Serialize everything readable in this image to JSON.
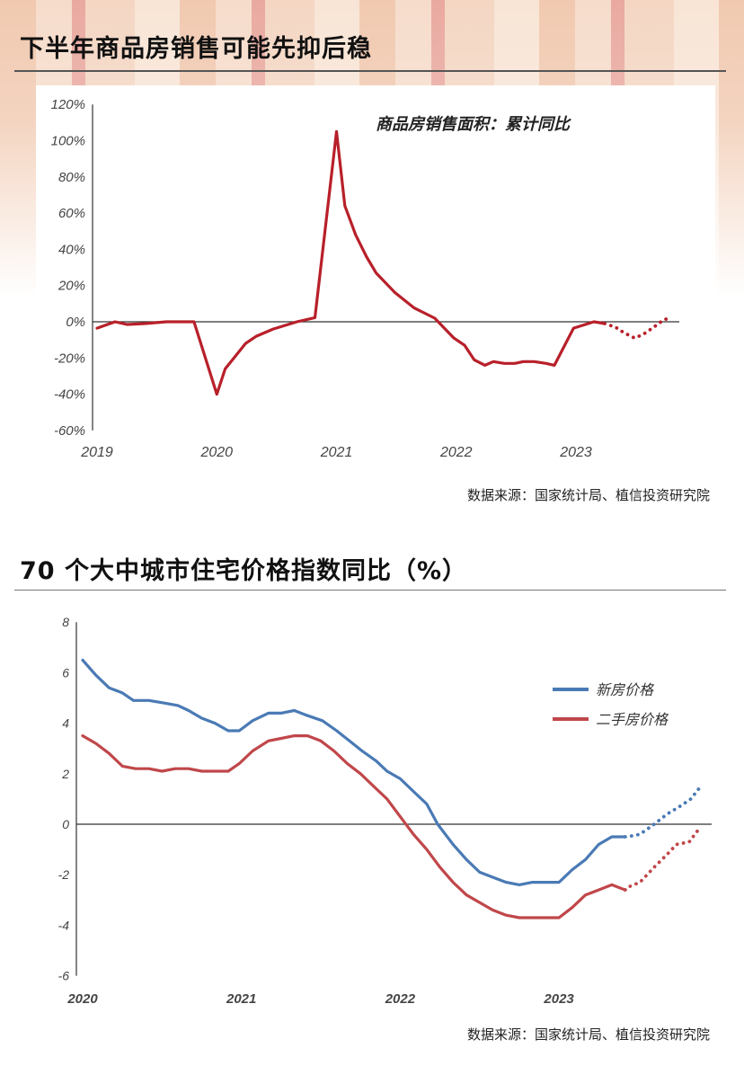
{
  "section1": {
    "title": "下半年商品房销售可能先抑后稳",
    "source": "数据来源：国家统计局、植信投资研究院"
  },
  "section2": {
    "title": "70 个大中城市住宅价格指数同比（%）",
    "source": "数据来源：国家统计局、植信投资研究院"
  },
  "chart_data": [
    {
      "type": "line",
      "title": "商品房销售面积：累计同比",
      "ylim": [
        -60,
        120
      ],
      "yticks": [
        -60,
        -40,
        -20,
        0,
        20,
        40,
        60,
        80,
        100,
        120
      ],
      "ytick_labels": [
        "-60%",
        "-40%",
        "-20%",
        "0%",
        "20%",
        "40%",
        "60%",
        "80%",
        "100%",
        "120%"
      ],
      "xticks": [
        2019,
        2020,
        2021,
        2022,
        2023
      ],
      "xtick_labels": [
        "2019",
        "2020",
        "2021",
        "2022",
        "2023"
      ],
      "grid": false,
      "series": [
        {
          "color": "#b8202a",
          "style": "solid",
          "x": [
            2019.0,
            2019.15,
            2019.25,
            2019.4,
            2019.58,
            2019.81,
            2020.0,
            2020.07,
            2020.24,
            2020.33,
            2020.47,
            2020.67,
            2020.82,
            2021.0,
            2021.07,
            2021.16,
            2021.25,
            2021.33,
            2021.49,
            2021.65,
            2021.82,
            2021.98,
            2022.07,
            2022.15,
            2022.24,
            2022.31,
            2022.4,
            2022.49,
            2022.56,
            2022.65,
            2022.75,
            2022.82,
            2022.98,
            2023.15,
            2023.24
          ],
          "y": [
            -3.5,
            0,
            -1.5,
            -1,
            0,
            0,
            -40,
            -26,
            -12,
            -8,
            -4,
            0,
            2.3,
            105,
            64,
            48,
            36,
            27,
            16,
            7.6,
            2,
            -9,
            -13,
            -21,
            -24,
            -22,
            -23,
            -23,
            -22,
            -22,
            -23,
            -24,
            -3.5,
            0,
            -1
          ]
        },
        {
          "color": "#b8202a",
          "style": "dotted",
          "x": [
            2023.24,
            2023.33,
            2023.4,
            2023.49,
            2023.56,
            2023.65,
            2023.73,
            2023.8
          ],
          "y": [
            -1,
            -3,
            -6,
            -9,
            -7,
            -3,
            1,
            2.5
          ]
        }
      ]
    },
    {
      "type": "line",
      "ylim": [
        -6,
        8
      ],
      "yticks": [
        -6,
        -4,
        -2,
        0,
        2,
        4,
        6,
        8
      ],
      "ytick_labels": [
        "-6",
        "-4",
        "-2",
        "0",
        "2",
        "4",
        "6",
        "8"
      ],
      "xticks": [
        2020,
        2021,
        2022,
        2023
      ],
      "xtick_labels": [
        "2020",
        "2021",
        "2022",
        "2023"
      ],
      "grid": false,
      "legend_placement": "right",
      "series": [
        {
          "name": "新房价格",
          "color": "#4a7ab5",
          "style": "solid",
          "x": [
            2020.0,
            2020.083,
            2020.167,
            2020.25,
            2020.32,
            2020.417,
            2020.51,
            2020.6,
            2020.667,
            2020.75,
            2020.833,
            2020.917,
            2020.986,
            2021.07,
            2021.17,
            2021.25,
            2021.333,
            2021.417,
            2021.51,
            2021.6,
            2021.68,
            2021.76,
            2021.85,
            2021.917,
            2022.0,
            2022.083,
            2022.167,
            2022.236,
            2022.333,
            2022.417,
            2022.5,
            2022.583,
            2022.667,
            2022.75,
            2022.833,
            2022.917,
            2023.0,
            2023.083,
            2023.167,
            2023.25,
            2023.333,
            2023.417
          ],
          "y": [
            6.5,
            5.9,
            5.4,
            5.2,
            4.9,
            4.9,
            4.8,
            4.7,
            4.5,
            4.2,
            4.0,
            3.7,
            3.7,
            4.1,
            4.4,
            4.4,
            4.5,
            4.3,
            4.1,
            3.7,
            3.3,
            2.9,
            2.5,
            2.1,
            1.8,
            1.3,
            0.8,
            0,
            -0.8,
            -1.4,
            -1.9,
            -2.1,
            -2.3,
            -2.4,
            -2.3,
            -2.3,
            -2.3,
            -1.8,
            -1.4,
            -0.8,
            -0.5,
            -0.5
          ]
        },
        {
          "name": "新房价格",
          "color": "#4a7ab5",
          "style": "dotted",
          "legend": false,
          "x": [
            2023.417,
            2023.43,
            2023.51,
            2023.6,
            2023.68,
            2023.76,
            2023.83,
            2023.88
          ],
          "y": [
            -0.5,
            -0.5,
            -0.4,
            0,
            0.4,
            0.7,
            1.0,
            1.4
          ]
        },
        {
          "name": "二手房价格",
          "color": "#c0474a",
          "style": "solid",
          "x": [
            2020.0,
            2020.083,
            2020.167,
            2020.25,
            2020.333,
            2020.417,
            2020.5,
            2020.583,
            2020.667,
            2020.75,
            2020.833,
            2020.917,
            2020.986,
            2021.07,
            2021.17,
            2021.25,
            2021.333,
            2021.417,
            2021.5,
            2021.583,
            2021.667,
            2021.75,
            2021.833,
            2021.917,
            2022.0,
            2022.083,
            2022.167,
            2022.25,
            2022.333,
            2022.417,
            2022.5,
            2022.583,
            2022.667,
            2022.75,
            2022.833,
            2022.917,
            2023.0,
            2023.083,
            2023.167,
            2023.25,
            2023.333,
            2023.417
          ],
          "y": [
            3.5,
            3.2,
            2.8,
            2.3,
            2.2,
            2.2,
            2.1,
            2.2,
            2.2,
            2.1,
            2.1,
            2.1,
            2.4,
            2.9,
            3.3,
            3.4,
            3.5,
            3.5,
            3.3,
            2.9,
            2.4,
            2.0,
            1.5,
            1.0,
            0.3,
            -0.4,
            -1.0,
            -1.7,
            -2.3,
            -2.8,
            -3.1,
            -3.4,
            -3.6,
            -3.7,
            -3.7,
            -3.7,
            -3.7,
            -3.3,
            -2.8,
            -2.6,
            -2.4,
            -2.6
          ]
        },
        {
          "name": "二手房价格",
          "color": "#c0474a",
          "style": "dotted",
          "legend": false,
          "x": [
            2023.417,
            2023.43,
            2023.51,
            2023.6,
            2023.68,
            2023.74,
            2023.82,
            2023.88
          ],
          "y": [
            -2.6,
            -2.5,
            -2.3,
            -1.7,
            -1.2,
            -0.8,
            -0.7,
            -0.2
          ]
        }
      ]
    }
  ]
}
